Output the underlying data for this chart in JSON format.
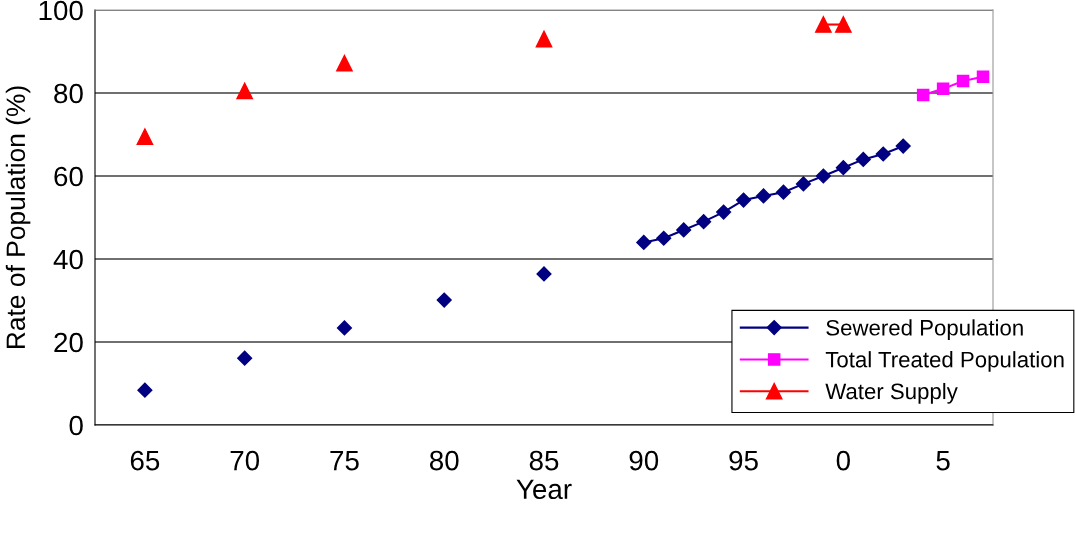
{
  "chart_data": {
    "type": "line",
    "xlabel": "Year",
    "ylabel": "Rate of Population (%)",
    "categories": [
      null,
      null,
      "65",
      null,
      null,
      null,
      null,
      "70",
      null,
      null,
      null,
      null,
      "75",
      null,
      null,
      null,
      null,
      "80",
      null,
      null,
      null,
      null,
      "85",
      null,
      null,
      null,
      null,
      "90",
      null,
      null,
      null,
      null,
      "95",
      null,
      null,
      null,
      null,
      "0",
      null,
      null,
      null,
      null,
      "5",
      null,
      null
    ],
    "series": [
      {
        "name": "Sewered Population",
        "color": "#000080",
        "marker": "diamond",
        "values": [
          null,
          null,
          8.4,
          null,
          null,
          null,
          null,
          16.1,
          null,
          null,
          null,
          null,
          23.4,
          null,
          null,
          null,
          null,
          30.1,
          null,
          null,
          null,
          null,
          36.4,
          null,
          null,
          null,
          null,
          44,
          45,
          47,
          49,
          51.3,
          54.2,
          55.2,
          56.1,
          58.1,
          60,
          62,
          64,
          65.3,
          67.2,
          null,
          null,
          null,
          null
        ]
      },
      {
        "name": "Total Treated Population",
        "color": "#ff00ff",
        "marker": "square",
        "values": [
          null,
          null,
          null,
          null,
          null,
          null,
          null,
          null,
          null,
          null,
          null,
          null,
          null,
          null,
          null,
          null,
          null,
          null,
          null,
          null,
          null,
          null,
          null,
          null,
          null,
          null,
          null,
          null,
          null,
          null,
          null,
          null,
          null,
          null,
          null,
          null,
          null,
          null,
          null,
          null,
          null,
          79.5,
          81,
          82.9,
          83.9
        ]
      },
      {
        "name": "Water Supply",
        "color": "#ff0000",
        "marker": "triangle",
        "values": [
          null,
          null,
          69.5,
          null,
          null,
          null,
          null,
          80.5,
          null,
          null,
          null,
          null,
          87.2,
          null,
          null,
          null,
          null,
          null,
          null,
          null,
          null,
          null,
          93,
          null,
          null,
          null,
          null,
          null,
          null,
          null,
          null,
          null,
          null,
          null,
          null,
          null,
          96.5,
          96.5,
          null,
          null,
          null,
          null,
          null,
          null,
          null
        ]
      }
    ],
    "ylim": [
      0,
      100
    ],
    "yticks": [
      0,
      20,
      40,
      60,
      80,
      100
    ],
    "grid": "y",
    "legend": "bottom right",
    "line_style": "solid"
  }
}
